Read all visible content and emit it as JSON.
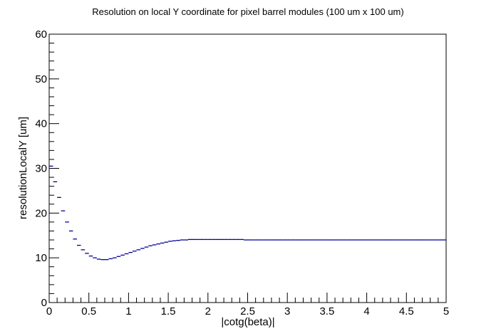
{
  "chart_data": {
    "type": "line",
    "title": "Resolution on local Y coordinate for pixel barrel modules (100 um x 100 um)",
    "xlabel": "|cotg(beta)|",
    "ylabel": "resolutionLocalY [um]",
    "xlim": [
      0,
      5
    ],
    "ylim": [
      0,
      60
    ],
    "x_tick_labels": [
      "0",
      "0.5",
      "1",
      "1.5",
      "2",
      "2.5",
      "3",
      "3.5",
      "4",
      "4.5",
      "5"
    ],
    "y_tick_labels": [
      "0",
      "10",
      "20",
      "30",
      "40",
      "50",
      "60"
    ],
    "grid": false,
    "line_color": "#000099",
    "bin_width": 0.05,
    "series": [
      {
        "x": [
          0.025,
          0.075,
          0.125,
          0.175,
          0.225,
          0.275,
          0.325,
          0.375,
          0.425,
          0.475,
          0.525,
          0.575,
          0.625,
          0.675,
          0.725,
          0.775,
          0.825,
          0.875,
          0.925,
          0.975,
          1.025,
          1.075,
          1.125,
          1.175,
          1.225,
          1.275,
          1.325,
          1.375,
          1.425,
          1.475,
          1.525,
          1.575,
          1.625,
          1.675,
          1.725,
          1.775,
          1.825,
          1.875,
          1.925,
          1.975,
          2.025,
          2.075,
          2.125,
          2.175,
          2.225,
          2.275,
          2.325,
          2.375,
          2.425,
          2.475,
          2.525,
          2.575,
          2.625,
          2.675,
          2.725,
          2.775,
          2.825,
          2.875,
          2.925,
          2.975,
          3.025,
          3.075,
          3.125,
          3.175,
          3.225,
          3.275,
          3.325,
          3.375,
          3.425,
          3.475,
          3.525,
          3.575,
          3.625,
          3.675,
          3.725,
          3.775,
          3.825,
          3.875,
          3.925,
          3.975,
          4.025,
          4.075,
          4.125,
          4.175,
          4.225,
          4.275,
          4.325,
          4.375,
          4.425,
          4.475,
          4.525,
          4.575,
          4.625,
          4.675,
          4.725,
          4.775,
          4.825,
          4.875,
          4.925,
          4.975
        ],
        "y": [
          30.5,
          27.0,
          23.5,
          20.5,
          18.0,
          16.0,
          14.2,
          12.8,
          11.8,
          11.0,
          10.4,
          10.0,
          9.7,
          9.6,
          9.6,
          9.8,
          10.0,
          10.3,
          10.6,
          10.9,
          11.2,
          11.5,
          11.8,
          12.1,
          12.4,
          12.7,
          12.9,
          13.1,
          13.3,
          13.5,
          13.7,
          13.8,
          13.9,
          14.0,
          14.0,
          14.1,
          14.1,
          14.1,
          14.1,
          14.1,
          14.1,
          14.1,
          14.1,
          14.1,
          14.1,
          14.1,
          14.1,
          14.1,
          14.1,
          14.0,
          14.0,
          14.0,
          14.0,
          14.0,
          14.0,
          14.0,
          14.0,
          14.0,
          14.0,
          14.0,
          14.0,
          14.0,
          14.0,
          14.0,
          14.0,
          14.0,
          14.0,
          14.0,
          14.0,
          14.0,
          14.0,
          14.0,
          14.0,
          14.0,
          14.0,
          14.0,
          14.0,
          14.0,
          14.0,
          14.0,
          14.0,
          14.0,
          14.0,
          14.0,
          14.0,
          14.0,
          14.0,
          14.0,
          14.0,
          14.0,
          14.0,
          14.0,
          14.0,
          14.0,
          14.0,
          14.0,
          14.0,
          14.0,
          14.0,
          14.0
        ]
      }
    ]
  }
}
